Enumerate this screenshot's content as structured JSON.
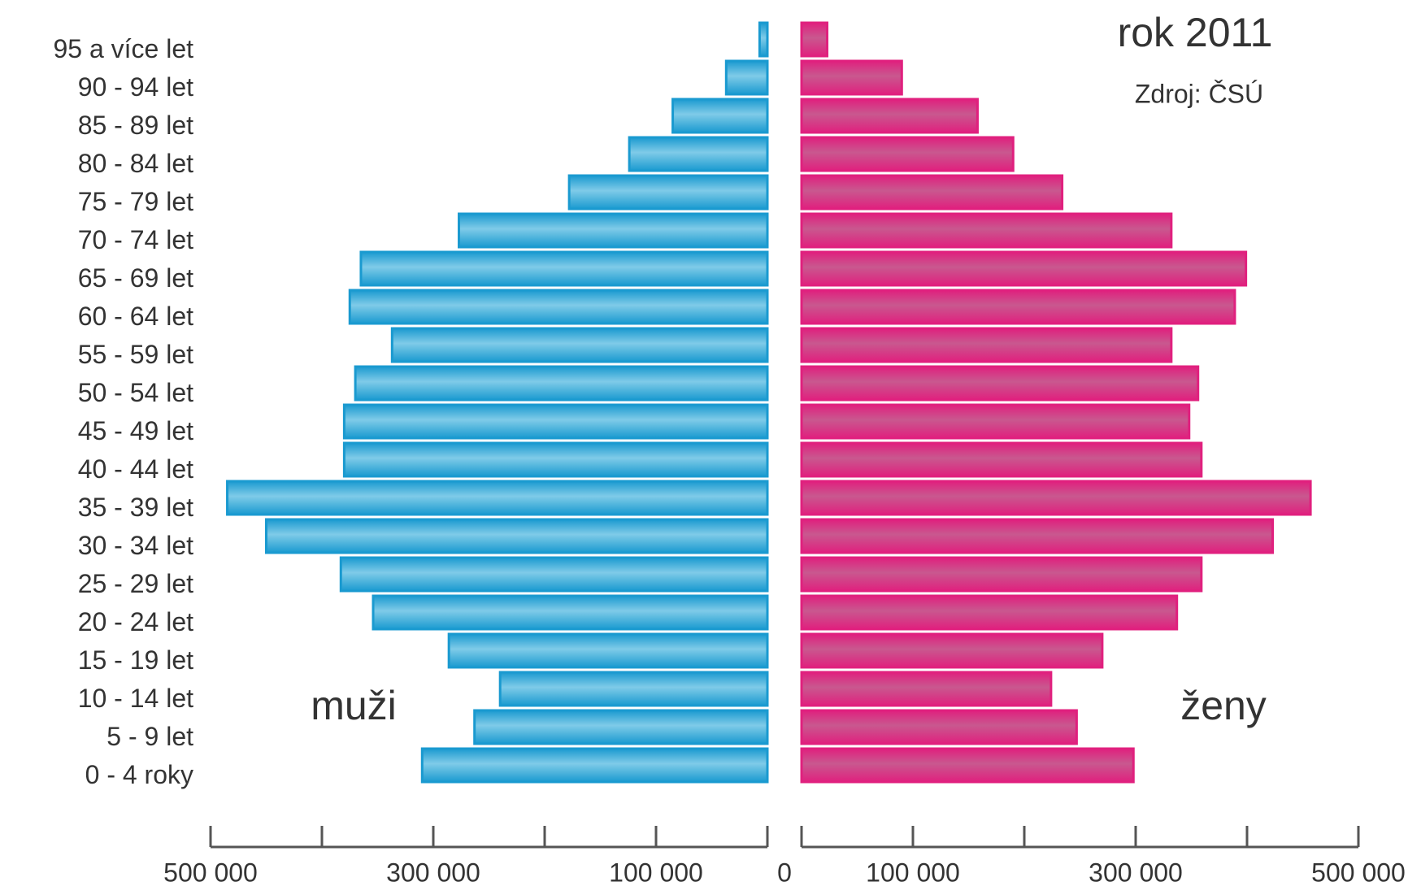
{
  "chart_data": {
    "type": "pyramid",
    "title": "rok 2011",
    "subtitle": "Zdroj: ČSÚ",
    "categories": [
      "95 a více let",
      "90 - 94 let",
      "85 - 89 let",
      "80 - 84 let",
      "75 - 79 let",
      "70 - 74 let",
      "65 - 69 let",
      "60 - 64 let",
      "55 - 59 let",
      "50 - 54 let",
      "45 - 49 let",
      "40 - 44 let",
      "35 - 39 let",
      "30 - 34 let",
      "25 - 29 let",
      "20 - 24 let",
      "15 - 19 let",
      "10 - 14 let",
      "5 - 9 let",
      "0 - 4 roky"
    ],
    "series": [
      {
        "name": "muži",
        "color": "#1a9ad0",
        "values": [
          7000,
          37000,
          85000,
          124000,
          178000,
          277000,
          365000,
          375000,
          337000,
          370000,
          380000,
          380000,
          485000,
          450000,
          383000,
          354000,
          286000,
          240000,
          263000,
          310000
        ]
      },
      {
        "name": "ženy",
        "color": "#e0207e",
        "values": [
          23000,
          90000,
          158000,
          190000,
          234000,
          332000,
          399000,
          389000,
          332000,
          356000,
          348000,
          359000,
          457000,
          423000,
          359000,
          337000,
          270000,
          224000,
          247000,
          298000
        ]
      }
    ],
    "xlim": [
      0,
      500000
    ],
    "xticks": [
      0,
      100000,
      200000,
      300000,
      400000,
      500000
    ],
    "left_xtick_labels": [
      {
        "value": 500000,
        "label": "500 000"
      },
      {
        "value": 300000,
        "label": "300 000"
      },
      {
        "value": 100000,
        "label": "100 000"
      },
      {
        "value": 0,
        "label": "0"
      }
    ],
    "right_xtick_labels": [
      {
        "value": 100000,
        "label": "100 000"
      },
      {
        "value": 300000,
        "label": "300 000"
      },
      {
        "value": 500000,
        "label": "500 000"
      }
    ]
  }
}
